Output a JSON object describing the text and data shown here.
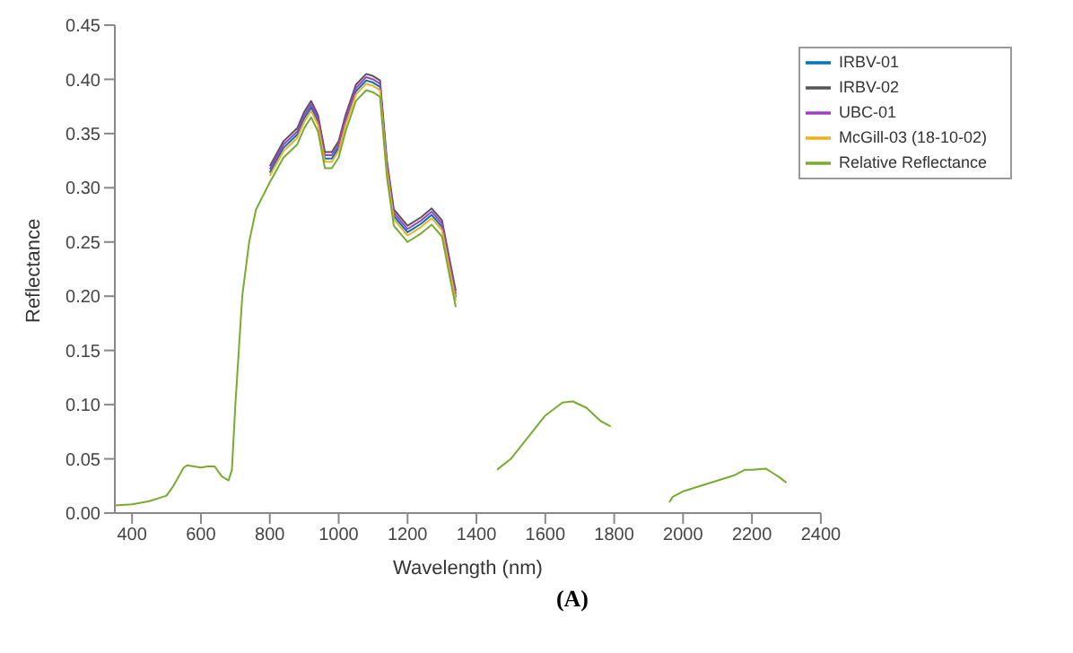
{
  "chart_data": {
    "type": "line",
    "xlabel": "Wavelength (nm)",
    "ylabel": "Reflectance",
    "annotations": [
      "(A)"
    ],
    "x": [
      350,
      400,
      450,
      500,
      520,
      550,
      560,
      600,
      620,
      640,
      660,
      680,
      690,
      700,
      720,
      740,
      760,
      800,
      840,
      880,
      900,
      920,
      940,
      960,
      980,
      1000,
      1020,
      1050,
      1080,
      1100,
      1120,
      1140,
      1160,
      1200,
      1240,
      1270,
      1300,
      1320,
      1340,
      1400,
      1460,
      1500,
      1550,
      1600,
      1650,
      1680,
      1720,
      1760,
      1790,
      1900,
      1960,
      1970,
      2000,
      2050,
      2100,
      2150,
      2180,
      2200,
      2240,
      2260,
      2280,
      2300
    ],
    "series": [
      {
        "name": "IRBV-01",
        "color": "#0072bd",
        "values": [
          null,
          null,
          null,
          null,
          null,
          null,
          null,
          null,
          null,
          null,
          null,
          null,
          null,
          null,
          null,
          null,
          null,
          0.314,
          0.337,
          0.349,
          0.364,
          0.374,
          0.361,
          0.327,
          0.327,
          0.337,
          0.361,
          0.389,
          0.399,
          0.397,
          0.393,
          0.319,
          0.274,
          0.259,
          0.267,
          0.275,
          0.264,
          0.231,
          0.199,
          null,
          null,
          null,
          null,
          null,
          null,
          null,
          null,
          null,
          null,
          null,
          null,
          null,
          null,
          null,
          null,
          null,
          null,
          null,
          null,
          null,
          null,
          null
        ]
      },
      {
        "name": "IRBV-02",
        "color": "#555555",
        "values": [
          null,
          null,
          null,
          null,
          null,
          null,
          null,
          null,
          null,
          null,
          null,
          null,
          null,
          null,
          null,
          null,
          null,
          0.32,
          0.343,
          0.355,
          0.37,
          0.38,
          0.367,
          0.333,
          0.333,
          0.343,
          0.367,
          0.395,
          0.405,
          0.403,
          0.399,
          0.325,
          0.28,
          0.265,
          0.273,
          0.281,
          0.27,
          0.237,
          0.205,
          null,
          null,
          null,
          null,
          null,
          null,
          null,
          null,
          null,
          null,
          null,
          null,
          null,
          null,
          null,
          null,
          null,
          null,
          null,
          null,
          null,
          null,
          null
        ]
      },
      {
        "name": "UBC-01",
        "color": "#a040c0",
        "values": [
          null,
          null,
          null,
          null,
          null,
          null,
          null,
          null,
          null,
          null,
          null,
          null,
          null,
          null,
          null,
          null,
          null,
          0.317,
          0.34,
          0.352,
          0.367,
          0.377,
          0.364,
          0.33,
          0.33,
          0.34,
          0.364,
          0.392,
          0.402,
          0.4,
          0.396,
          0.322,
          0.277,
          0.262,
          0.27,
          0.278,
          0.267,
          0.234,
          0.202,
          null,
          null,
          null,
          null,
          null,
          null,
          null,
          null,
          null,
          null,
          null,
          null,
          null,
          null,
          null,
          null,
          null,
          null,
          null,
          null,
          null,
          null,
          null
        ]
      },
      {
        "name": "McGill-03 (18-10-02)",
        "color": "#edb120",
        "values": [
          null,
          null,
          null,
          null,
          null,
          null,
          null,
          null,
          null,
          null,
          null,
          null,
          null,
          null,
          null,
          null,
          null,
          0.311,
          0.334,
          0.346,
          0.361,
          0.371,
          0.358,
          0.324,
          0.324,
          0.334,
          0.358,
          0.386,
          0.396,
          0.394,
          0.39,
          0.316,
          0.271,
          0.256,
          0.264,
          0.272,
          0.261,
          0.228,
          0.196,
          null,
          null,
          null,
          null,
          null,
          null,
          null,
          null,
          null,
          null,
          null,
          null,
          null,
          null,
          null,
          null,
          null,
          null,
          null,
          null,
          null,
          null,
          null
        ]
      },
      {
        "name": "Relative Reflectance",
        "color": "#77ac30",
        "values": [
          0.007,
          0.008,
          0.011,
          0.016,
          0.025,
          0.042,
          0.044,
          0.042,
          0.043,
          0.043,
          0.034,
          0.03,
          0.04,
          0.1,
          0.2,
          0.25,
          0.28,
          0.305,
          0.328,
          0.34,
          0.355,
          0.365,
          0.352,
          0.318,
          0.318,
          0.328,
          0.352,
          0.38,
          0.39,
          0.388,
          0.384,
          0.31,
          0.265,
          0.25,
          0.258,
          0.266,
          0.255,
          0.222,
          0.19,
          null,
          0.04,
          0.05,
          0.07,
          0.09,
          0.102,
          0.103,
          0.097,
          0.085,
          0.08,
          null,
          0.01,
          0.015,
          0.02,
          0.025,
          0.03,
          0.035,
          0.04,
          0.04,
          0.041,
          0.037,
          0.033,
          0.028
        ]
      }
    ],
    "xlim": [
      350,
      2400
    ],
    "xticks": [
      400,
      600,
      800,
      1000,
      1200,
      1400,
      1600,
      1800,
      2000,
      2200,
      2400
    ],
    "ylim": [
      0,
      0.45
    ],
    "yticks": [
      {
        "value": 0,
        "label": "0.00"
      },
      {
        "value": 0.05,
        "label": "0.05"
      },
      {
        "value": 0.1,
        "label": "0.10"
      },
      {
        "value": 0.15,
        "label": "0.15"
      },
      {
        "value": 0.2,
        "label": "0.20"
      },
      {
        "value": 0.25,
        "label": "0.25"
      },
      {
        "value": 0.3,
        "label": "0.30"
      },
      {
        "value": 0.35,
        "label": "0.35"
      },
      {
        "value": 0.4,
        "label": "0.40"
      },
      {
        "value": 0.45,
        "label": "0.45"
      }
    ],
    "grid": false,
    "legend": "top right",
    "marker": "none",
    "line_style": "solid"
  }
}
